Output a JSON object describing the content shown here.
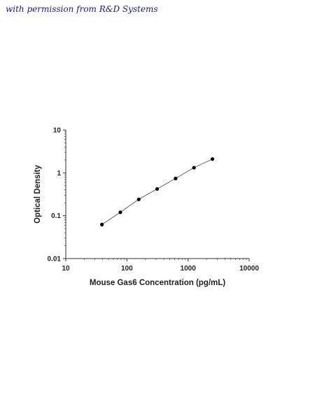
{
  "credit_text": "with permission from R&D Systems",
  "chart_data": {
    "type": "scatter",
    "title": "",
    "xlabel": "Mouse Gas6 Concentration (pg/mL)",
    "ylabel": "Optical Density",
    "x_scale": "log",
    "y_scale": "log",
    "xlim": [
      10,
      10000
    ],
    "ylim": [
      0.01,
      10
    ],
    "x_ticks": [
      10,
      100,
      1000,
      10000
    ],
    "x_tick_labels": [
      "10",
      "100",
      "1000",
      "10000"
    ],
    "y_ticks": [
      0.01,
      0.1,
      1,
      10
    ],
    "y_tick_labels": [
      "0.01",
      "0.1",
      "1",
      "10"
    ],
    "grid": false,
    "legend": "none",
    "series": [
      {
        "x": [
          39,
          78,
          156,
          312,
          625,
          1250,
          2500
        ],
        "y": [
          0.062,
          0.12,
          0.24,
          0.42,
          0.74,
          1.32,
          2.1
        ]
      }
    ],
    "marker_color": "#000000",
    "line_color": "#555555"
  }
}
